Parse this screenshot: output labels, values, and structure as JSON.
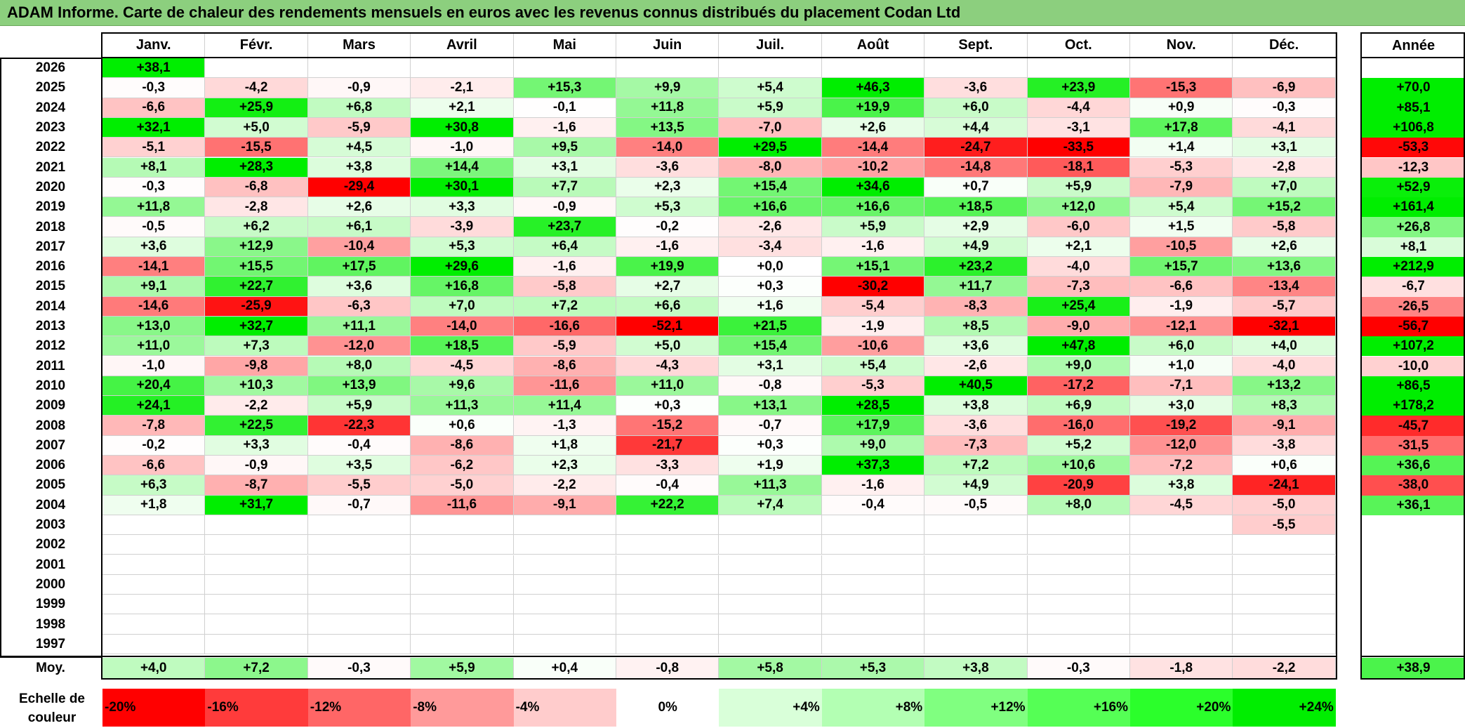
{
  "title": "ADAM Informe. Carte de chaleur des rendements mensuels en euros avec les revenus connus distribués du placement Codan Ltd",
  "chart_data": {
    "type": "heatmap",
    "title": "ADAM Informe. Carte de chaleur des rendements mensuels en euros avec les revenus connus distribués du placement Codan Ltd",
    "months": [
      "Janv.",
      "Févr.",
      "Mars",
      "Avril",
      "Mai",
      "Juin",
      "Juil.",
      "Août",
      "Sept.",
      "Oct.",
      "Nov.",
      "Déc."
    ],
    "year_header": "Année",
    "rows": [
      {
        "year": "2026",
        "values": [
          "+38,1",
          "",
          "",
          "",
          "",
          "",
          "",
          "",
          "",
          "",
          "",
          ""
        ],
        "annual": ""
      },
      {
        "year": "2025",
        "values": [
          "-0,3",
          "-4,2",
          "-0,9",
          "-2,1",
          "+15,3",
          "+9,9",
          "+5,4",
          "+46,3",
          "-3,6",
          "+23,9",
          "-15,3",
          "-6,9"
        ],
        "annual": "+70,0"
      },
      {
        "year": "2024",
        "values": [
          "-6,6",
          "+25,9",
          "+6,8",
          "+2,1",
          "-0,1",
          "+11,8",
          "+5,9",
          "+19,9",
          "+6,0",
          "-4,4",
          "+0,9",
          "-0,3"
        ],
        "annual": "+85,1"
      },
      {
        "year": "2023",
        "values": [
          "+32,1",
          "+5,0",
          "-5,9",
          "+30,8",
          "-1,6",
          "+13,5",
          "-7,0",
          "+2,6",
          "+4,4",
          "-3,1",
          "+17,8",
          "-4,1"
        ],
        "annual": "+106,8"
      },
      {
        "year": "2022",
        "values": [
          "-5,1",
          "-15,5",
          "+4,5",
          "-1,0",
          "+9,5",
          "-14,0",
          "+29,5",
          "-14,4",
          "-24,7",
          "-33,5",
          "+1,4",
          "+3,1"
        ],
        "annual": "-53,3"
      },
      {
        "year": "2021",
        "values": [
          "+8,1",
          "+28,3",
          "+3,8",
          "+14,4",
          "+3,1",
          "-3,6",
          "-8,0",
          "-10,2",
          "-14,8",
          "-18,1",
          "-5,3",
          "-2,8"
        ],
        "annual": "-12,3"
      },
      {
        "year": "2020",
        "values": [
          "-0,3",
          "-6,8",
          "-29,4",
          "+30,1",
          "+7,7",
          "+2,3",
          "+15,4",
          "+34,6",
          "+0,7",
          "+5,9",
          "-7,9",
          "+7,0"
        ],
        "annual": "+52,9"
      },
      {
        "year": "2019",
        "values": [
          "+11,8",
          "-2,8",
          "+2,6",
          "+3,3",
          "-0,9",
          "+5,3",
          "+16,6",
          "+16,6",
          "+18,5",
          "+12,0",
          "+5,4",
          "+15,2"
        ],
        "annual": "+161,4"
      },
      {
        "year": "2018",
        "values": [
          "-0,5",
          "+6,2",
          "+6,1",
          "-3,9",
          "+23,7",
          "-0,2",
          "-2,6",
          "+5,9",
          "+2,9",
          "-6,0",
          "+1,5",
          "-5,8"
        ],
        "annual": "+26,8"
      },
      {
        "year": "2017",
        "values": [
          "+3,6",
          "+12,9",
          "-10,4",
          "+5,3",
          "+6,4",
          "-1,6",
          "-3,4",
          "-1,6",
          "+4,9",
          "+2,1",
          "-10,5",
          "+2,6"
        ],
        "annual": "+8,1"
      },
      {
        "year": "2016",
        "values": [
          "-14,1",
          "+15,5",
          "+17,5",
          "+29,6",
          "-1,6",
          "+19,9",
          "+0,0",
          "+15,1",
          "+23,2",
          "-4,0",
          "+15,7",
          "+13,6"
        ],
        "annual": "+212,9"
      },
      {
        "year": "2015",
        "values": [
          "+9,1",
          "+22,7",
          "+3,6",
          "+16,8",
          "-5,8",
          "+2,7",
          "+0,3",
          "-30,2",
          "+11,7",
          "-7,3",
          "-6,6",
          "-13,4"
        ],
        "annual": "-6,7"
      },
      {
        "year": "2014",
        "values": [
          "-14,6",
          "-25,9",
          "-6,3",
          "+7,0",
          "+7,2",
          "+6,6",
          "+1,6",
          "-5,4",
          "-8,3",
          "+25,4",
          "-1,9",
          "-5,7"
        ],
        "annual": "-26,5"
      },
      {
        "year": "2013",
        "values": [
          "+13,0",
          "+32,7",
          "+11,1",
          "-14,0",
          "-16,6",
          "-52,1",
          "+21,5",
          "-1,9",
          "+8,5",
          "-9,0",
          "-12,1",
          "-32,1"
        ],
        "annual": "-56,7"
      },
      {
        "year": "2012",
        "values": [
          "+11,0",
          "+7,3",
          "-12,0",
          "+18,5",
          "-5,9",
          "+5,0",
          "+15,4",
          "-10,6",
          "+3,6",
          "+47,8",
          "+6,0",
          "+4,0"
        ],
        "annual": "+107,2"
      },
      {
        "year": "2011",
        "values": [
          "-1,0",
          "-9,8",
          "+8,0",
          "-4,5",
          "-8,6",
          "-4,3",
          "+3,1",
          "+5,4",
          "-2,6",
          "+9,0",
          "+1,0",
          "-4,0"
        ],
        "annual": "-10,0"
      },
      {
        "year": "2010",
        "values": [
          "+20,4",
          "+10,3",
          "+13,9",
          "+9,6",
          "-11,6",
          "+11,0",
          "-0,8",
          "-5,3",
          "+40,5",
          "-17,2",
          "-7,1",
          "+13,2"
        ],
        "annual": "+86,5"
      },
      {
        "year": "2009",
        "values": [
          "+24,1",
          "-2,2",
          "+5,9",
          "+11,3",
          "+11,4",
          "+0,3",
          "+13,1",
          "+28,5",
          "+3,8",
          "+6,9",
          "+3,0",
          "+8,3"
        ],
        "annual": "+178,2"
      },
      {
        "year": "2008",
        "values": [
          "-7,8",
          "+22,5",
          "-22,3",
          "+0,6",
          "-1,3",
          "-15,2",
          "-0,7",
          "+17,9",
          "-3,6",
          "-16,0",
          "-19,2",
          "-9,1"
        ],
        "annual": "-45,7"
      },
      {
        "year": "2007",
        "values": [
          "-0,2",
          "+3,3",
          "-0,4",
          "-8,6",
          "+1,8",
          "-21,7",
          "+0,3",
          "+9,0",
          "-7,3",
          "+5,2",
          "-12,0",
          "-3,8"
        ],
        "annual": "-31,5"
      },
      {
        "year": "2006",
        "values": [
          "-6,6",
          "-0,9",
          "+3,5",
          "-6,2",
          "+2,3",
          "-3,3",
          "+1,9",
          "+37,3",
          "+7,2",
          "+10,6",
          "-7,2",
          "+0,6"
        ],
        "annual": "+36,6"
      },
      {
        "year": "2005",
        "values": [
          "+6,3",
          "-8,7",
          "-5,5",
          "-5,0",
          "-2,2",
          "-0,4",
          "+11,3",
          "-1,6",
          "+4,9",
          "-20,9",
          "+3,8",
          "-24,1"
        ],
        "annual": "-38,0"
      },
      {
        "year": "2004",
        "values": [
          "+1,8",
          "+31,7",
          "-0,7",
          "-11,6",
          "-9,1",
          "+22,2",
          "+7,4",
          "-0,4",
          "-0,5",
          "+8,0",
          "-4,5",
          "-5,0"
        ],
        "annual": "+36,1"
      },
      {
        "year": "2003",
        "values": [
          "",
          "",
          "",
          "",
          "",
          "",
          "",
          "",
          "",
          "",
          "",
          "-5,5"
        ],
        "annual": ""
      },
      {
        "year": "2002",
        "values": [
          "",
          "",
          "",
          "",
          "",
          "",
          "",
          "",
          "",
          "",
          "",
          ""
        ],
        "annual": ""
      },
      {
        "year": "2001",
        "values": [
          "",
          "",
          "",
          "",
          "",
          "",
          "",
          "",
          "",
          "",
          "",
          ""
        ],
        "annual": ""
      },
      {
        "year": "2000",
        "values": [
          "",
          "",
          "",
          "",
          "",
          "",
          "",
          "",
          "",
          "",
          "",
          ""
        ],
        "annual": ""
      },
      {
        "year": "1999",
        "values": [
          "",
          "",
          "",
          "",
          "",
          "",
          "",
          "",
          "",
          "",
          "",
          ""
        ],
        "annual": ""
      },
      {
        "year": "1998",
        "values": [
          "",
          "",
          "",
          "",
          "",
          "",
          "",
          "",
          "",
          "",
          "",
          ""
        ],
        "annual": ""
      },
      {
        "year": "1997",
        "values": [
          "",
          "",
          "",
          "",
          "",
          "",
          "",
          "",
          "",
          "",
          "",
          ""
        ],
        "annual": ""
      }
    ],
    "average": {
      "label": "Moy.",
      "values": [
        "+4,0",
        "+7,2",
        "-0,3",
        "+5,9",
        "+0,4",
        "-0,8",
        "+5,8",
        "+5,3",
        "+3,8",
        "-0,3",
        "-1,8",
        "-2,2"
      ],
      "annual": "+38,9"
    },
    "color_scale": {
      "label": "Echelle de couleur",
      "labels": [
        "-20%",
        "-16%",
        "-12%",
        "-8%",
        "-4%",
        "0%",
        "+4%",
        "+8%",
        "+12%",
        "+16%",
        "+20%",
        "+24%"
      ],
      "values": [
        -20,
        -16,
        -12,
        -8,
        -4,
        0,
        4,
        8,
        12,
        16,
        20,
        24
      ],
      "colors": [
        "#ff0000",
        "#ff3b3b",
        "#ff6666",
        "#ff9a9a",
        "#ffcccc",
        "#ffffff",
        "#d9ffd9",
        "#b3ffb3",
        "#80ff80",
        "#55ff55",
        "#2bff2b",
        "#00ee00"
      ]
    },
    "colors": {
      "negative_max": "#ff0000",
      "neutral": "#ffffff",
      "positive_max": "#00ee00"
    }
  }
}
